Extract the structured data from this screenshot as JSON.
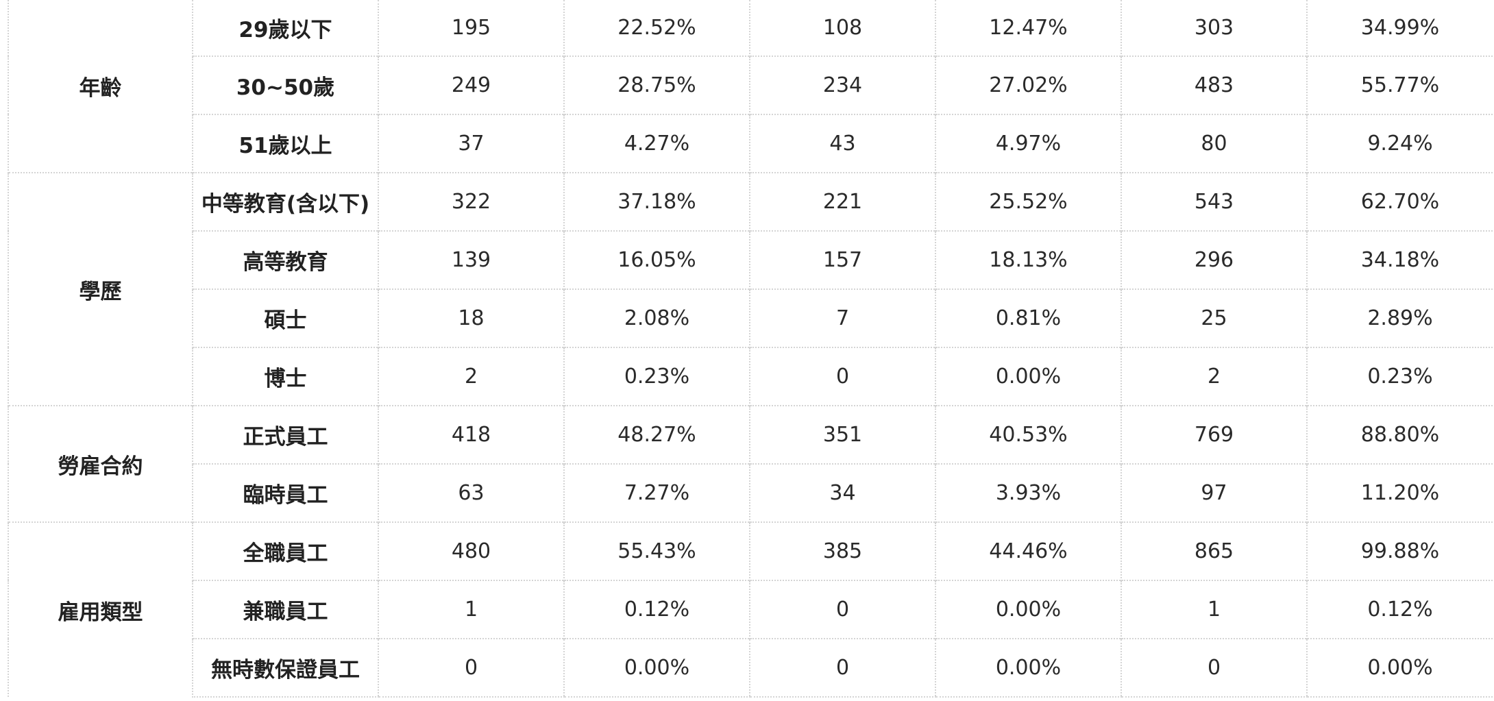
{
  "table": {
    "groups": [
      {
        "label": "年齡",
        "rows": [
          {
            "category": "29歲以下",
            "cells": [
              "195",
              "22.52%",
              "108",
              "12.47%",
              "303",
              "34.99%"
            ]
          },
          {
            "category": "30~50歲",
            "cells": [
              "249",
              "28.75%",
              "234",
              "27.02%",
              "483",
              "55.77%"
            ]
          },
          {
            "category": "51歲以上",
            "cells": [
              "37",
              "4.27%",
              "43",
              "4.97%",
              "80",
              "9.24%"
            ]
          }
        ]
      },
      {
        "label": "學歷",
        "rows": [
          {
            "category": "中等教育(含以下)",
            "cells": [
              "322",
              "37.18%",
              "221",
              "25.52%",
              "543",
              "62.70%"
            ]
          },
          {
            "category": "高等教育",
            "cells": [
              "139",
              "16.05%",
              "157",
              "18.13%",
              "296",
              "34.18%"
            ]
          },
          {
            "category": "碩士",
            "cells": [
              "18",
              "2.08%",
              "7",
              "0.81%",
              "25",
              "2.89%"
            ]
          },
          {
            "category": "博士",
            "cells": [
              "2",
              "0.23%",
              "0",
              "0.00%",
              "2",
              "0.23%"
            ]
          }
        ]
      },
      {
        "label": "勞雇合約",
        "rows": [
          {
            "category": "正式員工",
            "cells": [
              "418",
              "48.27%",
              "351",
              "40.53%",
              "769",
              "88.80%"
            ]
          },
          {
            "category": "臨時員工",
            "cells": [
              "63",
              "7.27%",
              "34",
              "3.93%",
              "97",
              "11.20%"
            ]
          }
        ]
      },
      {
        "label": "雇用類型",
        "rows": [
          {
            "category": "全職員工",
            "cells": [
              "480",
              "55.43%",
              "385",
              "44.46%",
              "865",
              "99.88%"
            ]
          },
          {
            "category": "兼職員工",
            "cells": [
              "1",
              "0.12%",
              "0",
              "0.00%",
              "1",
              "0.12%"
            ]
          },
          {
            "category": "無時數保證員工",
            "cells": [
              "0",
              "0.00%",
              "0",
              "0.00%",
              "0",
              "0.00%"
            ]
          }
        ]
      }
    ]
  }
}
